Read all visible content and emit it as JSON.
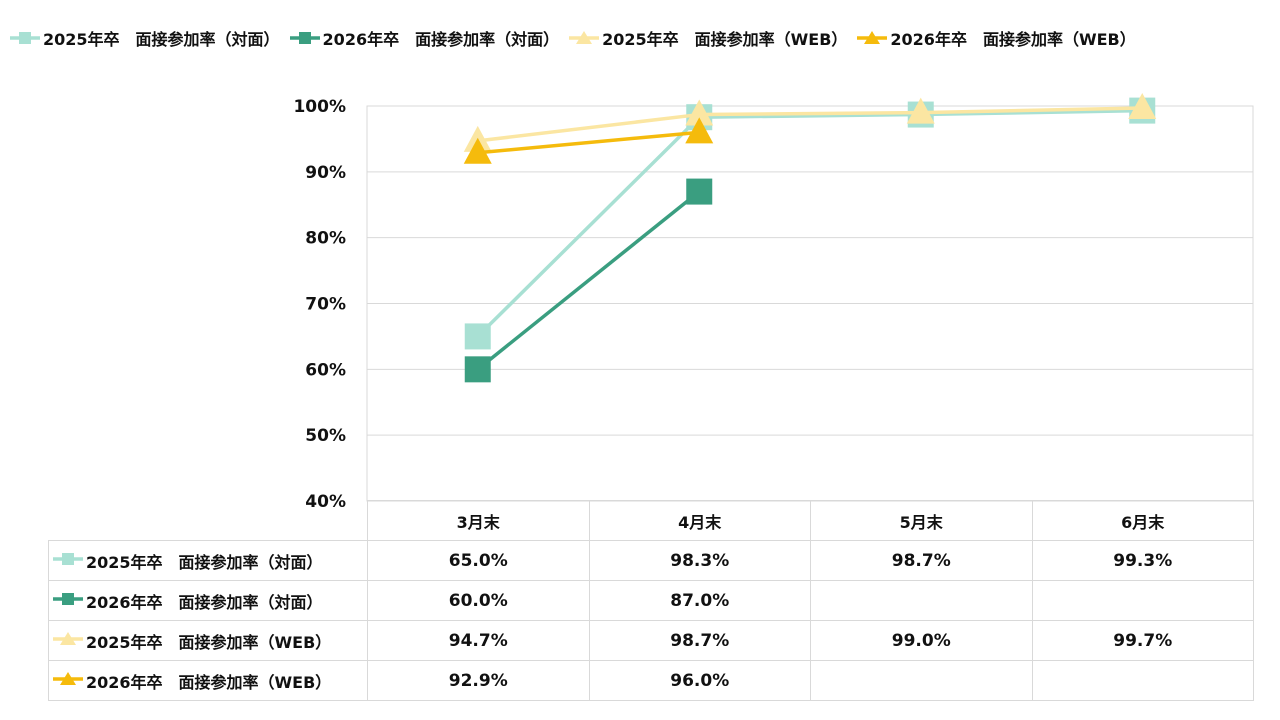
{
  "legend": [
    {
      "label": "2025年卒　面接参加率（対面）",
      "color": "#a8e0d3",
      "marker": "square-icon"
    },
    {
      "label": "2026年卒　面接参加率（対面）",
      "color": "#3a9e80",
      "marker": "square-icon"
    },
    {
      "label": "2025年卒　面接参加率（WEB）",
      "color": "#fbe6a2",
      "marker": "triangle-icon"
    },
    {
      "label": "2026年卒　面接参加率（WEB）",
      "color": "#f5bb0c",
      "marker": "triangle-icon"
    }
  ],
  "chart_data": {
    "type": "line",
    "categories": [
      "3月末",
      "4月末",
      "5月末",
      "6月末"
    ],
    "ylim": [
      40,
      100
    ],
    "yticks": [
      "40%",
      "50%",
      "60%",
      "70%",
      "80%",
      "90%",
      "100%"
    ],
    "grid": true,
    "legend_position": "top",
    "series": [
      {
        "name": "2025年卒　面接参加率（対面）",
        "values": [
          65.0,
          98.3,
          98.7,
          99.3
        ],
        "labels": [
          "65.0%",
          "98.3%",
          "98.7%",
          "99.3%"
        ],
        "color": "#a8e0d3",
        "marker": "square"
      },
      {
        "name": "2026年卒　面接参加率（対面）",
        "values": [
          60.0,
          87.0,
          null,
          null
        ],
        "labels": [
          "60.0%",
          "87.0%",
          "",
          ""
        ],
        "color": "#3a9e80",
        "marker": "square"
      },
      {
        "name": "2025年卒　面接参加率（WEB）",
        "values": [
          94.7,
          98.7,
          99.0,
          99.7
        ],
        "labels": [
          "94.7%",
          "98.7%",
          "99.0%",
          "99.7%"
        ],
        "color": "#fbe6a2",
        "marker": "triangle"
      },
      {
        "name": "2026年卒　面接参加率（WEB）",
        "values": [
          92.9,
          96.0,
          null,
          null
        ],
        "labels": [
          "92.9%",
          "96.0%",
          "",
          ""
        ],
        "color": "#f5bb0c",
        "marker": "triangle"
      }
    ]
  }
}
